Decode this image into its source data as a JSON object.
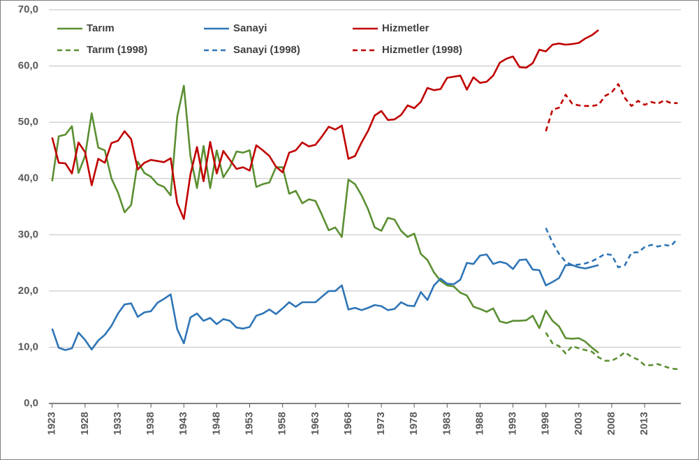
{
  "chart_data": {
    "type": "line",
    "x": [
      1923,
      1924,
      1925,
      1926,
      1927,
      1928,
      1929,
      1930,
      1931,
      1932,
      1933,
      1934,
      1935,
      1936,
      1937,
      1938,
      1939,
      1940,
      1941,
      1942,
      1943,
      1944,
      1945,
      1946,
      1947,
      1948,
      1949,
      1950,
      1951,
      1952,
      1953,
      1954,
      1955,
      1956,
      1957,
      1958,
      1959,
      1960,
      1961,
      1962,
      1963,
      1964,
      1965,
      1966,
      1967,
      1968,
      1969,
      1970,
      1971,
      1972,
      1973,
      1974,
      1975,
      1976,
      1977,
      1978,
      1979,
      1980,
      1981,
      1982,
      1983,
      1984,
      1985,
      1986,
      1987,
      1988,
      1989,
      1990,
      1991,
      1992,
      1993,
      1994,
      1995,
      1996,
      1997,
      1998,
      1999,
      2000,
      2001,
      2002,
      2003,
      2004,
      2005,
      2006,
      2007,
      2008,
      2009,
      2010,
      2011,
      2012,
      2013,
      2014,
      2015,
      2016,
      2017,
      2018
    ],
    "series": [
      {
        "name": "Tarım",
        "color": "#5b8f32",
        "dashed": false,
        "values": [
          39.5,
          47.5,
          47.8,
          49.3,
          41.0,
          44.0,
          51.6,
          45.5,
          45.0,
          40.0,
          37.5,
          34.0,
          35.3,
          43.0,
          41.0,
          40.3,
          39.0,
          38.5,
          37.0,
          51.0,
          56.5,
          44.0,
          38.3,
          45.8,
          38.3,
          45.0,
          40.2,
          42.0,
          44.8,
          44.6,
          45.0,
          38.5,
          39.0,
          39.3,
          42.0,
          42.0,
          37.3,
          37.8,
          35.6,
          36.3,
          36.0,
          33.5,
          30.8,
          31.3,
          29.6,
          39.8,
          39.0,
          37.0,
          34.5,
          31.3,
          30.7,
          33.0,
          32.7,
          30.7,
          29.6,
          30.2,
          26.6,
          25.5,
          23.3,
          21.8,
          21.0,
          20.8,
          19.7,
          19.2,
          17.2,
          16.8,
          16.3,
          16.9,
          14.6,
          14.3,
          14.7,
          14.7,
          14.8,
          15.6,
          13.4,
          16.5,
          14.7,
          13.7,
          11.6,
          11.5,
          11.6,
          11.0,
          9.9,
          9.0,
          null,
          null,
          null,
          null,
          null,
          null,
          null,
          null,
          null,
          null,
          null,
          null
        ]
      },
      {
        "name": "Sanayi",
        "color": "#2e75b6",
        "dashed": false,
        "values": [
          13.3,
          9.9,
          9.5,
          9.8,
          12.6,
          11.3,
          9.6,
          11.2,
          12.2,
          13.8,
          16.0,
          17.6,
          17.8,
          15.4,
          16.2,
          16.4,
          17.9,
          18.6,
          19.4,
          13.2,
          10.7,
          15.3,
          16.0,
          14.7,
          15.2,
          14.1,
          15.0,
          14.7,
          13.5,
          13.3,
          13.6,
          15.6,
          16.0,
          16.7,
          15.9,
          16.9,
          18.0,
          17.2,
          18.0,
          18.0,
          18.0,
          19.0,
          20.0,
          20.0,
          21.0,
          16.7,
          17.0,
          16.6,
          17.0,
          17.5,
          17.3,
          16.6,
          16.8,
          18.0,
          17.4,
          17.3,
          19.8,
          18.4,
          21.0,
          22.2,
          21.3,
          21.2,
          22.0,
          25.0,
          24.8,
          26.3,
          26.5,
          24.8,
          25.2,
          24.9,
          23.9,
          25.5,
          25.6,
          23.8,
          23.7,
          21.0,
          21.6,
          22.3,
          24.6,
          24.6,
          24.2,
          24.0,
          24.3,
          24.6,
          null,
          null,
          null,
          null,
          null,
          null,
          null,
          null,
          null,
          null,
          null,
          null
        ]
      },
      {
        "name": "Hizmetler",
        "color": "#c00000",
        "dashed": false,
        "values": [
          47.3,
          42.8,
          42.7,
          40.9,
          46.4,
          44.7,
          38.8,
          43.5,
          42.8,
          46.3,
          46.7,
          48.4,
          47.0,
          41.6,
          42.8,
          43.3,
          43.1,
          42.9,
          43.6,
          35.6,
          32.8,
          40.7,
          45.6,
          39.5,
          46.5,
          40.9,
          44.9,
          43.3,
          41.7,
          42.0,
          41.4,
          45.9,
          45.0,
          44.0,
          42.1,
          41.1,
          44.6,
          45.0,
          46.4,
          45.7,
          46.0,
          47.5,
          49.2,
          48.7,
          49.4,
          43.5,
          44.0,
          46.4,
          48.5,
          51.2,
          52.0,
          50.4,
          50.5,
          51.3,
          53.0,
          52.5,
          53.6,
          56.1,
          55.7,
          55.9,
          57.9,
          58.1,
          58.3,
          55.8,
          58.0,
          57.0,
          57.2,
          58.3,
          60.6,
          61.3,
          61.7,
          59.8,
          59.7,
          60.5,
          62.9,
          62.6,
          63.8,
          64.0,
          63.8,
          63.9,
          64.1,
          64.9,
          65.5,
          66.4,
          null,
          null,
          null,
          null,
          null,
          null,
          null,
          null,
          null,
          null,
          null,
          null
        ]
      },
      {
        "name": "Tarım (1998)",
        "color": "#5b8f32",
        "dashed": true,
        "values": [
          null,
          null,
          null,
          null,
          null,
          null,
          null,
          null,
          null,
          null,
          null,
          null,
          null,
          null,
          null,
          null,
          null,
          null,
          null,
          null,
          null,
          null,
          null,
          null,
          null,
          null,
          null,
          null,
          null,
          null,
          null,
          null,
          null,
          null,
          null,
          null,
          null,
          null,
          null,
          null,
          null,
          null,
          null,
          null,
          null,
          null,
          null,
          null,
          null,
          null,
          null,
          null,
          null,
          null,
          null,
          null,
          null,
          null,
          null,
          null,
          null,
          null,
          null,
          null,
          null,
          null,
          null,
          null,
          null,
          null,
          null,
          null,
          null,
          null,
          null,
          12.6,
          10.7,
          10.2,
          8.9,
          10.2,
          9.8,
          9.5,
          9.2,
          8.2,
          7.6,
          7.6,
          8.2,
          9.1,
          8.3,
          7.8,
          6.8,
          6.8,
          7.0,
          6.6,
          6.2,
          6.1
        ]
      },
      {
        "name": "Sanayi (1998)",
        "color": "#2e75b6",
        "dashed": true,
        "values": [
          null,
          null,
          null,
          null,
          null,
          null,
          null,
          null,
          null,
          null,
          null,
          null,
          null,
          null,
          null,
          null,
          null,
          null,
          null,
          null,
          null,
          null,
          null,
          null,
          null,
          null,
          null,
          null,
          null,
          null,
          null,
          null,
          null,
          null,
          null,
          null,
          null,
          null,
          null,
          null,
          null,
          null,
          null,
          null,
          null,
          null,
          null,
          null,
          null,
          null,
          null,
          null,
          null,
          null,
          null,
          null,
          null,
          null,
          null,
          null,
          null,
          null,
          null,
          null,
          null,
          null,
          null,
          null,
          null,
          null,
          null,
          null,
          null,
          null,
          null,
          31.2,
          28.6,
          26.6,
          25.2,
          24.6,
          24.7,
          24.9,
          25.3,
          25.9,
          26.6,
          26.4,
          24.2,
          24.6,
          26.8,
          26.9,
          27.8,
          28.2,
          27.9,
          28.2,
          28.0,
          29.3
        ]
      },
      {
        "name": "Hizmetler (1998)",
        "color": "#c00000",
        "dashed": true,
        "values": [
          null,
          null,
          null,
          null,
          null,
          null,
          null,
          null,
          null,
          null,
          null,
          null,
          null,
          null,
          null,
          null,
          null,
          null,
          null,
          null,
          null,
          null,
          null,
          null,
          null,
          null,
          null,
          null,
          null,
          null,
          null,
          null,
          null,
          null,
          null,
          null,
          null,
          null,
          null,
          null,
          null,
          null,
          null,
          null,
          null,
          null,
          null,
          null,
          null,
          null,
          null,
          null,
          null,
          null,
          null,
          null,
          null,
          null,
          null,
          null,
          null,
          null,
          null,
          null,
          null,
          null,
          null,
          null,
          null,
          null,
          null,
          null,
          null,
          null,
          null,
          48.4,
          52.2,
          52.6,
          54.9,
          53.3,
          53.0,
          52.9,
          52.9,
          53.1,
          54.7,
          55.3,
          56.8,
          54.3,
          52.9,
          53.8,
          53.1,
          53.6,
          53.3,
          53.9,
          53.4,
          53.4
        ]
      }
    ],
    "xlim": [
      1922.5,
      2018.5
    ],
    "xticks": [
      1923,
      1928,
      1933,
      1938,
      1943,
      1948,
      1953,
      1958,
      1963,
      1968,
      1973,
      1978,
      1983,
      1988,
      1993,
      1998,
      2003,
      2008,
      2013
    ],
    "ylim": [
      0,
      70
    ],
    "yticks": [
      {
        "value": 0,
        "label": "0,0"
      },
      {
        "value": 10,
        "label": "10,0"
      },
      {
        "value": 20,
        "label": "20,0"
      },
      {
        "value": 30,
        "label": "30,0"
      },
      {
        "value": 40,
        "label": "40,0"
      },
      {
        "value": 50,
        "label": "50,0"
      },
      {
        "value": 60,
        "label": "60,0"
      },
      {
        "value": 70,
        "label": "70,0"
      }
    ],
    "grid": true,
    "legend": "top"
  }
}
